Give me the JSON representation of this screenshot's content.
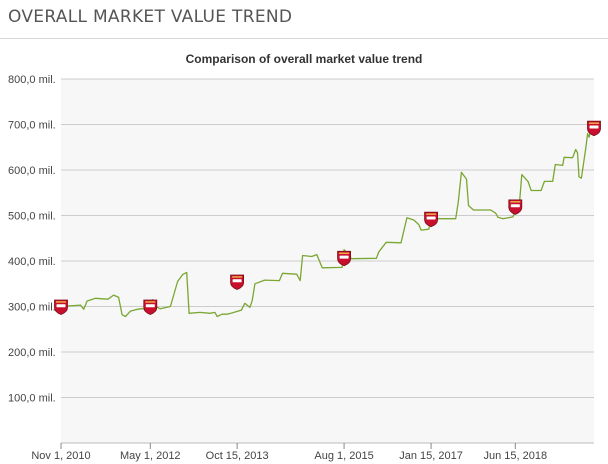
{
  "page": {
    "title": "OVERALL MARKET VALUE TREND"
  },
  "chart_data": {
    "type": "line",
    "title": "Comparison of overall market value trend",
    "xlabel": "",
    "ylabel": "",
    "ylim": [
      0,
      800
    ],
    "grid": true,
    "y_ticks": [
      "800,0 mil.",
      "700,0 mil.",
      "600,0 mil.",
      "500,0 mil.",
      "400,0 mil.",
      "300,0 mil.",
      "200,0 mil.",
      "100,0 mil."
    ],
    "y_tick_values": [
      800,
      700,
      600,
      500,
      400,
      300,
      200,
      100
    ],
    "x_ticks": [
      "Nov 1, 2010",
      "May 1, 2012",
      "Oct 15, 2013",
      "Aug 1, 2015",
      "Jan 15, 2017",
      "Jun 15, 2018"
    ],
    "x_tick_dates": [
      "2010-11-01",
      "2012-05-01",
      "2013-10-15",
      "2015-08-01",
      "2017-01-15",
      "2018-06-15"
    ],
    "x_range": [
      "2010-11-01",
      "2019-10-10"
    ],
    "line_color": "#7aa632",
    "series": [
      {
        "name": "",
        "points": [
          [
            "2010-11-01",
            300
          ],
          [
            "2011-01-15",
            302
          ],
          [
            "2011-03-01",
            303
          ],
          [
            "2011-03-20",
            294
          ],
          [
            "2011-04-10",
            312
          ],
          [
            "2011-06-01",
            318
          ],
          [
            "2011-08-15",
            316
          ],
          [
            "2011-09-20",
            325
          ],
          [
            "2011-10-20",
            320
          ],
          [
            "2011-11-10",
            282
          ],
          [
            "2011-12-01",
            278
          ],
          [
            "2012-01-01",
            290
          ],
          [
            "2012-02-01",
            293
          ],
          [
            "2012-03-01",
            295
          ],
          [
            "2012-05-01",
            295
          ],
          [
            "2012-05-15",
            315
          ],
          [
            "2012-06-01",
            300
          ],
          [
            "2012-07-01",
            295
          ],
          [
            "2012-09-01",
            300
          ],
          [
            "2012-10-15",
            355
          ],
          [
            "2012-11-15",
            370
          ],
          [
            "2012-12-10",
            375
          ],
          [
            "2012-12-25",
            285
          ],
          [
            "2013-03-01",
            287
          ],
          [
            "2013-05-01",
            285
          ],
          [
            "2013-06-01",
            287
          ],
          [
            "2013-06-15",
            278
          ],
          [
            "2013-07-15",
            283
          ],
          [
            "2013-08-15",
            283
          ],
          [
            "2013-09-15",
            286
          ],
          [
            "2013-11-10",
            292
          ],
          [
            "2013-12-01",
            307
          ],
          [
            "2014-01-01",
            298
          ],
          [
            "2014-01-15",
            313
          ],
          [
            "2014-02-01",
            350
          ],
          [
            "2014-04-01",
            358
          ],
          [
            "2014-07-01",
            357
          ],
          [
            "2014-07-20",
            373
          ],
          [
            "2014-10-15",
            371
          ],
          [
            "2014-11-05",
            357
          ],
          [
            "2014-11-20",
            412
          ],
          [
            "2015-01-15",
            410
          ],
          [
            "2015-02-15",
            414
          ],
          [
            "2015-03-20",
            385
          ],
          [
            "2015-07-20",
            386
          ],
          [
            "2015-08-01",
            425
          ],
          [
            "2015-09-15",
            405
          ],
          [
            "2016-02-15",
            406
          ],
          [
            "2016-03-01",
            420
          ],
          [
            "2016-04-15",
            441
          ],
          [
            "2016-07-15",
            440
          ],
          [
            "2016-08-20",
            495
          ],
          [
            "2016-10-01",
            490
          ],
          [
            "2016-11-01",
            480
          ],
          [
            "2016-11-15",
            468
          ],
          [
            "2017-01-01",
            470
          ],
          [
            "2017-01-15",
            493
          ],
          [
            "2017-06-15",
            493
          ],
          [
            "2017-07-01",
            530
          ],
          [
            "2017-07-20",
            595
          ],
          [
            "2017-08-20",
            580
          ],
          [
            "2017-09-01",
            522
          ],
          [
            "2017-10-01",
            512
          ],
          [
            "2018-01-15",
            512
          ],
          [
            "2018-02-15",
            505
          ],
          [
            "2018-03-01",
            496
          ],
          [
            "2018-04-01",
            493
          ],
          [
            "2018-06-01",
            497
          ],
          [
            "2018-06-15",
            510
          ],
          [
            "2018-07-10",
            525
          ],
          [
            "2018-07-25",
            590
          ],
          [
            "2018-09-01",
            575
          ],
          [
            "2018-09-20",
            555
          ],
          [
            "2018-11-20",
            555
          ],
          [
            "2018-12-10",
            575
          ],
          [
            "2019-01-30",
            575
          ],
          [
            "2019-02-15",
            612
          ],
          [
            "2019-04-01",
            610
          ],
          [
            "2019-04-10",
            628
          ],
          [
            "2019-06-01",
            627
          ],
          [
            "2019-06-20",
            645
          ],
          [
            "2019-07-01",
            638
          ],
          [
            "2019-07-10",
            585
          ],
          [
            "2019-07-25",
            582
          ],
          [
            "2019-08-20",
            647
          ],
          [
            "2019-09-01",
            680
          ],
          [
            "2019-09-10",
            672
          ],
          [
            "2019-09-20",
            690
          ],
          [
            "2019-10-10",
            690
          ]
        ]
      }
    ],
    "markers": {
      "icon": "club-crest-icon",
      "color": "#c8102e",
      "points": [
        [
          "2010-11-01",
          300
        ],
        [
          "2012-05-01",
          300
        ],
        [
          "2013-10-15",
          355
        ],
        [
          "2015-08-01",
          407
        ],
        [
          "2017-01-15",
          493
        ],
        [
          "2018-06-15",
          520
        ],
        [
          "2019-10-10",
          693
        ]
      ]
    }
  }
}
